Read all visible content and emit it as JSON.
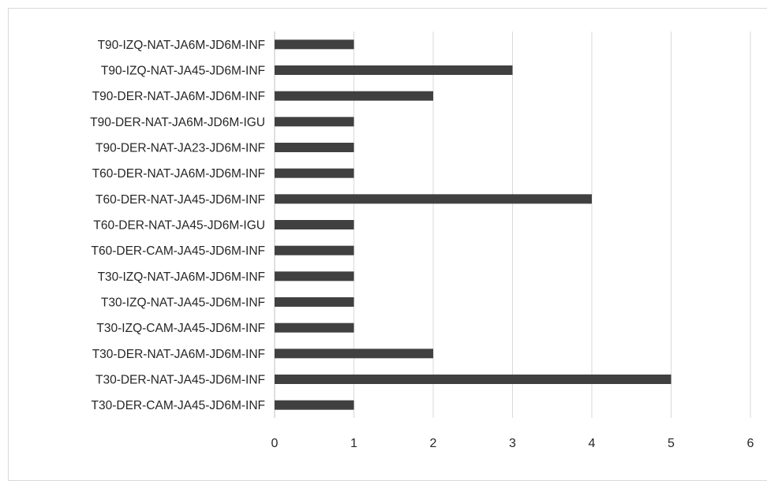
{
  "chart_data": {
    "type": "bar",
    "orientation": "horizontal",
    "title": "",
    "xlabel": "",
    "ylabel": "",
    "xlim": [
      0,
      6
    ],
    "x_ticks": [
      "0",
      "1",
      "2",
      "3",
      "4",
      "5",
      "6"
    ],
    "grid": "vertical",
    "legend": "none",
    "bar_color": "#404040",
    "categories": [
      "T90-IZQ-NAT-JA6M-JD6M-INF",
      "T90-IZQ-NAT-JA45-JD6M-INF",
      "T90-DER-NAT-JA6M-JD6M-INF",
      "T90-DER-NAT-JA6M-JD6M-IGU",
      "T90-DER-NAT-JA23-JD6M-INF",
      "T60-DER-NAT-JA6M-JD6M-INF",
      "T60-DER-NAT-JA45-JD6M-INF",
      "T60-DER-NAT-JA45-JD6M-IGU",
      "T60-DER-CAM-JA45-JD6M-INF",
      "T30-IZQ-NAT-JA6M-JD6M-INF",
      "T30-IZQ-NAT-JA45-JD6M-INF",
      "T30-IZQ-CAM-JA45-JD6M-INF",
      "T30-DER-NAT-JA6M-JD6M-INF",
      "T30-DER-NAT-JA45-JD6M-INF",
      "T30-DER-CAM-JA45-JD6M-INF"
    ],
    "values": [
      1,
      3,
      2,
      1,
      1,
      1,
      4,
      1,
      1,
      1,
      1,
      1,
      2,
      5,
      1
    ]
  }
}
